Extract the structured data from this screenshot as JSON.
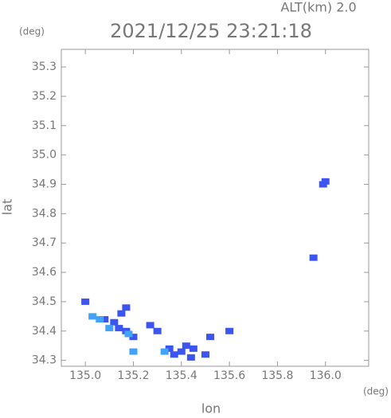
{
  "chart_data": {
    "type": "scatter",
    "header": "ALT(km)  2.0",
    "title": "2021/12/25 23:21:18",
    "y_unit": "(deg)",
    "x_unit": "(deg)",
    "xlabel": "lon",
    "ylabel": "lat",
    "xlim": [
      134.9,
      136.18
    ],
    "ylim": [
      34.28,
      35.36
    ],
    "xticks": [
      {
        "value": 135,
        "label": "135.0"
      },
      {
        "value": 135.2,
        "label": "135.2"
      },
      {
        "value": 135.4,
        "label": "135.4"
      },
      {
        "value": 135.6,
        "label": "135.6"
      },
      {
        "value": 135.8,
        "label": "135.8"
      },
      {
        "value": 136,
        "label": "136.0"
      }
    ],
    "yticks": [
      {
        "value": 34.3,
        "label": "34.3"
      },
      34.4,
      34.5,
      34.6,
      34.7,
      34.8,
      34.9,
      {
        "value": 35,
        "label": "35.0"
      },
      35.1,
      35.2,
      35.3
    ],
    "series": [
      {
        "color": "#3c55f0",
        "x": [
          135.0,
          135.08,
          135.12,
          135.14,
          135.17,
          135.2,
          135.27,
          135.3,
          135.35,
          135.4,
          135.42,
          135.45,
          135.5,
          135.52,
          135.6,
          135.99,
          136.0,
          135.95,
          135.17,
          135.15,
          135.37,
          135.44
        ],
        "y": [
          34.5,
          34.44,
          34.43,
          34.41,
          34.4,
          34.38,
          34.42,
          34.4,
          34.34,
          34.33,
          34.35,
          34.34,
          34.32,
          34.38,
          34.4,
          34.9,
          34.91,
          34.65,
          34.48,
          34.46,
          34.32,
          34.31
        ]
      },
      {
        "color": "#42a2f8",
        "x": [
          135.03,
          135.06,
          135.1,
          135.18,
          135.2,
          135.33
        ],
        "y": [
          34.45,
          34.44,
          34.41,
          34.39,
          34.33,
          34.33
        ]
      }
    ]
  }
}
